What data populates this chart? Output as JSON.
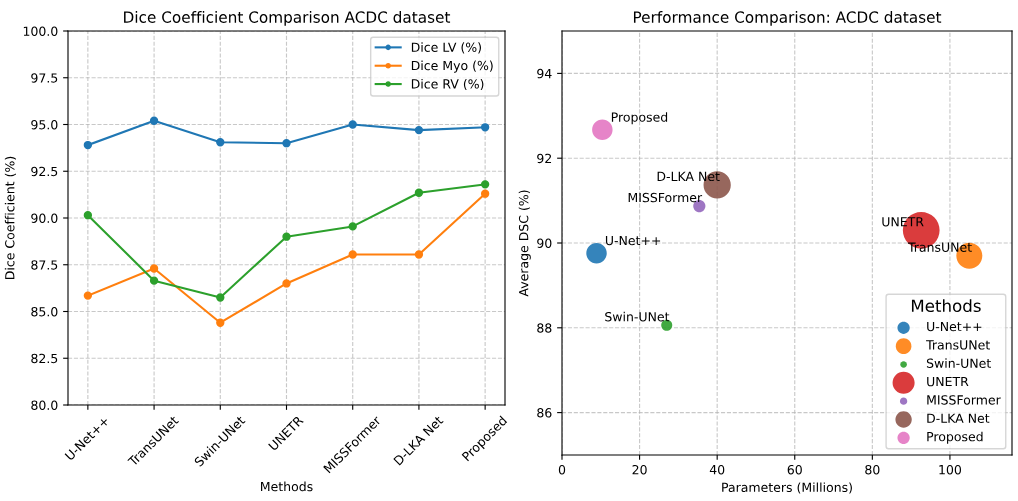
{
  "chart_data": [
    {
      "type": "line",
      "title": "Dice Coefficient Comparison ACDC dataset",
      "xlabel": "Methods",
      "ylabel": "Dice Coefficient (%)",
      "categories": [
        "U-Net++",
        "TransUNet",
        "Swin-UNet",
        "UNETR",
        "MISSFormer",
        "D-LKA Net",
        "Proposed"
      ],
      "series": [
        {
          "name": "Dice LV (%)",
          "color": "#1f77b4",
          "values": [
            93.9,
            95.2,
            94.05,
            94.0,
            95.0,
            94.7,
            94.85
          ]
        },
        {
          "name": "Dice Myo (%)",
          "color": "#ff7f0e",
          "values": [
            85.85,
            87.3,
            84.4,
            86.5,
            88.05,
            88.05,
            91.3
          ]
        },
        {
          "name": "Dice RV (%)",
          "color": "#2ca02c",
          "values": [
            90.15,
            86.65,
            85.75,
            89.0,
            89.55,
            91.35,
            91.8
          ]
        }
      ],
      "ylim": [
        80,
        100
      ],
      "yticks": [
        {
          "value": 80,
          "label": "80.0"
        },
        {
          "value": 82.5,
          "label": "82.5"
        },
        {
          "value": 85,
          "label": "85.0"
        },
        {
          "value": 87.5,
          "label": "87.5"
        },
        {
          "value": 90,
          "label": "90.0"
        },
        {
          "value": 92.5,
          "label": "92.5"
        },
        {
          "value": 95,
          "label": "95.0"
        },
        {
          "value": 97.5,
          "label": "97.5"
        },
        {
          "value": 100,
          "label": "100.0"
        }
      ],
      "grid": true,
      "legend": "top right",
      "marker": "circle",
      "line_style": "solid"
    },
    {
      "type": "bubble",
      "title": "Performance Comparison: ACDC dataset",
      "xlabel": "Parameters (Millions)",
      "ylabel": "Average DSC (%)",
      "legend_title": "Methods",
      "series": [
        {
          "name": "U-Net++",
          "color": "#1f77b4",
          "x": [
            8.9
          ],
          "values": [
            89.76
          ],
          "sizes": [
            0.31
          ]
        },
        {
          "name": "TransUNet",
          "color": "#ff7f0e",
          "x": [
            105.0
          ],
          "values": [
            89.7
          ],
          "sizes": [
            0.5
          ]
        },
        {
          "name": "Swin-UNet",
          "color": "#2ca02c",
          "x": [
            27.0
          ],
          "values": [
            88.06
          ],
          "sizes": [
            0.09
          ]
        },
        {
          "name": "UNETR",
          "color": "#d62728",
          "x": [
            92.6
          ],
          "values": [
            90.3
          ],
          "sizes": [
            1
          ]
        },
        {
          "name": "MISSFormer",
          "color": "#9467bd",
          "x": [
            35.4
          ],
          "values": [
            90.87
          ],
          "sizes": [
            0.11
          ]
        },
        {
          "name": "D-LKA Net",
          "color": "#8c564b",
          "x": [
            40.0
          ],
          "values": [
            91.37
          ],
          "sizes": [
            0.55
          ]
        },
        {
          "name": "Proposed",
          "color": "#e377c2",
          "x": [
            10.4
          ],
          "values": [
            92.67
          ],
          "sizes": [
            0.31
          ]
        }
      ],
      "annotations": [
        {
          "text": "U-Net++",
          "x": 8.9,
          "y": 89.76
        },
        {
          "text": "TransUNet",
          "x": 105.0,
          "y": 89.7
        },
        {
          "text": "Swin-UNet",
          "x": 27.0,
          "y": 88.06
        },
        {
          "text": "UNETR",
          "x": 92.6,
          "y": 90.3
        },
        {
          "text": "MISSFormer",
          "x": 35.4,
          "y": 90.87
        },
        {
          "text": "D-LKA Net",
          "x": 40.0,
          "y": 91.37
        },
        {
          "text": "Proposed",
          "x": 10.4,
          "y": 92.67
        }
      ],
      "xlim": [
        0,
        116
      ],
      "xticks": [
        0,
        20,
        40,
        60,
        80,
        100
      ],
      "ylim": [
        85,
        95
      ],
      "yticks": [
        86,
        88,
        90,
        92,
        94
      ],
      "grid": true,
      "legend": "bottom right"
    }
  ]
}
